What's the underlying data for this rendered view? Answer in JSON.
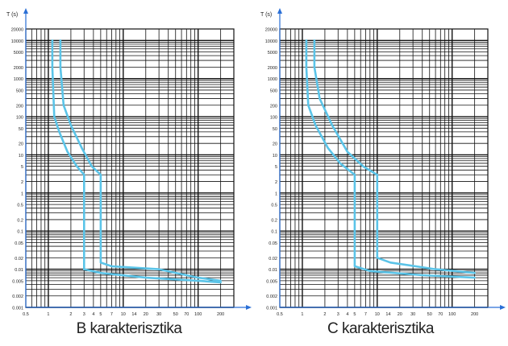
{
  "chart_data": [
    {
      "type": "line",
      "title": "B karakterisztika",
      "ylabel": "T (s)",
      "xlabel": "",
      "x_scale": "log",
      "y_scale": "log",
      "xlim": [
        0.5,
        300
      ],
      "ylim": [
        0.001,
        20000
      ],
      "grid": true,
      "x_ticks": [
        "0.5",
        "1",
        "2",
        "3",
        "4",
        "5",
        "7",
        "10",
        "14",
        "20",
        "30",
        "50",
        "70",
        "100",
        "200"
      ],
      "y_ticks": [
        "20000",
        "10000",
        "5000",
        "2000",
        "1000",
        "500",
        "200",
        "100",
        "50",
        "20",
        "10",
        "5",
        "2",
        "1",
        "0.5",
        "0.2",
        "0.1",
        "0.05",
        "0.02",
        "0.01",
        "0.005",
        "0.002",
        "0.001"
      ],
      "series": [
        {
          "values": [
            [
              1.13,
              10000
            ],
            [
              1.13,
              2000
            ],
            [
              1.2,
              100
            ],
            [
              1.4,
              40
            ],
            [
              1.8,
              12
            ],
            [
              2.4,
              5
            ],
            [
              3,
              3
            ],
            [
              3,
              0.01
            ],
            [
              5,
              0.008
            ],
            [
              20,
              0.006
            ],
            [
              100,
              0.005
            ],
            [
              200,
              0.0045
            ]
          ]
        },
        {
          "values": [
            [
              1.45,
              10000
            ],
            [
              1.45,
              2000
            ],
            [
              1.6,
              200
            ],
            [
              2.0,
              60
            ],
            [
              2.8,
              15
            ],
            [
              3.8,
              5
            ],
            [
              5,
              3
            ],
            [
              5,
              0.015
            ],
            [
              7,
              0.012
            ],
            [
              30,
              0.01
            ],
            [
              100,
              0.006
            ],
            [
              200,
              0.005
            ]
          ]
        }
      ]
    },
    {
      "type": "line",
      "title": "C karakterisztika",
      "ylabel": "T (s)",
      "xlabel": "",
      "x_scale": "log",
      "y_scale": "log",
      "xlim": [
        0.5,
        300
      ],
      "ylim": [
        0.001,
        20000
      ],
      "grid": true,
      "x_ticks": [
        "0.5",
        "1",
        "2",
        "3",
        "4",
        "5",
        "7",
        "10",
        "14",
        "20",
        "30",
        "50",
        "70",
        "100",
        "200"
      ],
      "y_ticks": [
        "20000",
        "10000",
        "5000",
        "2000",
        "1000",
        "500",
        "200",
        "100",
        "50",
        "20",
        "10",
        "5",
        "2",
        "1",
        "0.5",
        "0.2",
        "0.1",
        "0.05",
        "0.02",
        "0.01",
        "0.005",
        "0.002",
        "0.001"
      ],
      "series": [
        {
          "values": [
            [
              1.13,
              10000
            ],
            [
              1.13,
              2000
            ],
            [
              1.2,
              200
            ],
            [
              1.5,
              60
            ],
            [
              2.2,
              15
            ],
            [
              3.2,
              6
            ],
            [
              5,
              3
            ],
            [
              5,
              0.012
            ],
            [
              8,
              0.009
            ],
            [
              40,
              0.007
            ],
            [
              200,
              0.006
            ]
          ]
        },
        {
          "values": [
            [
              1.45,
              10000
            ],
            [
              1.45,
              2000
            ],
            [
              1.7,
              300
            ],
            [
              2.5,
              60
            ],
            [
              4,
              12
            ],
            [
              6.5,
              5
            ],
            [
              10,
              3
            ],
            [
              10,
              0.02
            ],
            [
              15,
              0.015
            ],
            [
              60,
              0.01
            ],
            [
              200,
              0.008
            ]
          ]
        }
      ]
    }
  ],
  "colors": {
    "curve": "#5bc4e8",
    "grid": "#111111",
    "axis": "#2a6fd6"
  }
}
